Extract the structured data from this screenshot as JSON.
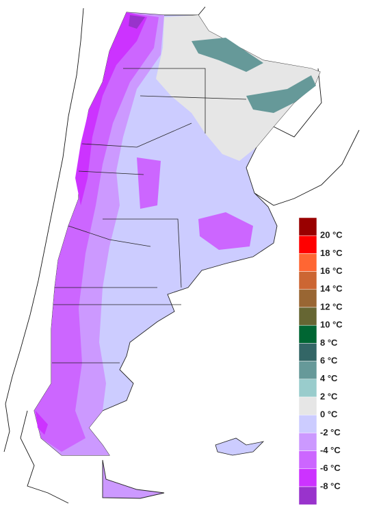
{
  "legend": {
    "colors": [
      "#990000",
      "#ff0000",
      "#ff6633",
      "#cc6633",
      "#996633",
      "#666633",
      "#006633",
      "#336666",
      "#669999",
      "#99cccc",
      "#e6e6e6",
      "#ccccff",
      "#cc99ff",
      "#cc66ff",
      "#cc33ff",
      "#9933cc"
    ],
    "labels": [
      "20 °C",
      "18 °C",
      "16 °C",
      "14 °C",
      "12 °C",
      "10 °C",
      "8 °C",
      "6 °C",
      "4 °C",
      "2 °C",
      "0 °C",
      "-2 °C",
      "-4 °C",
      "-6 °C",
      "-8 °C"
    ]
  }
}
